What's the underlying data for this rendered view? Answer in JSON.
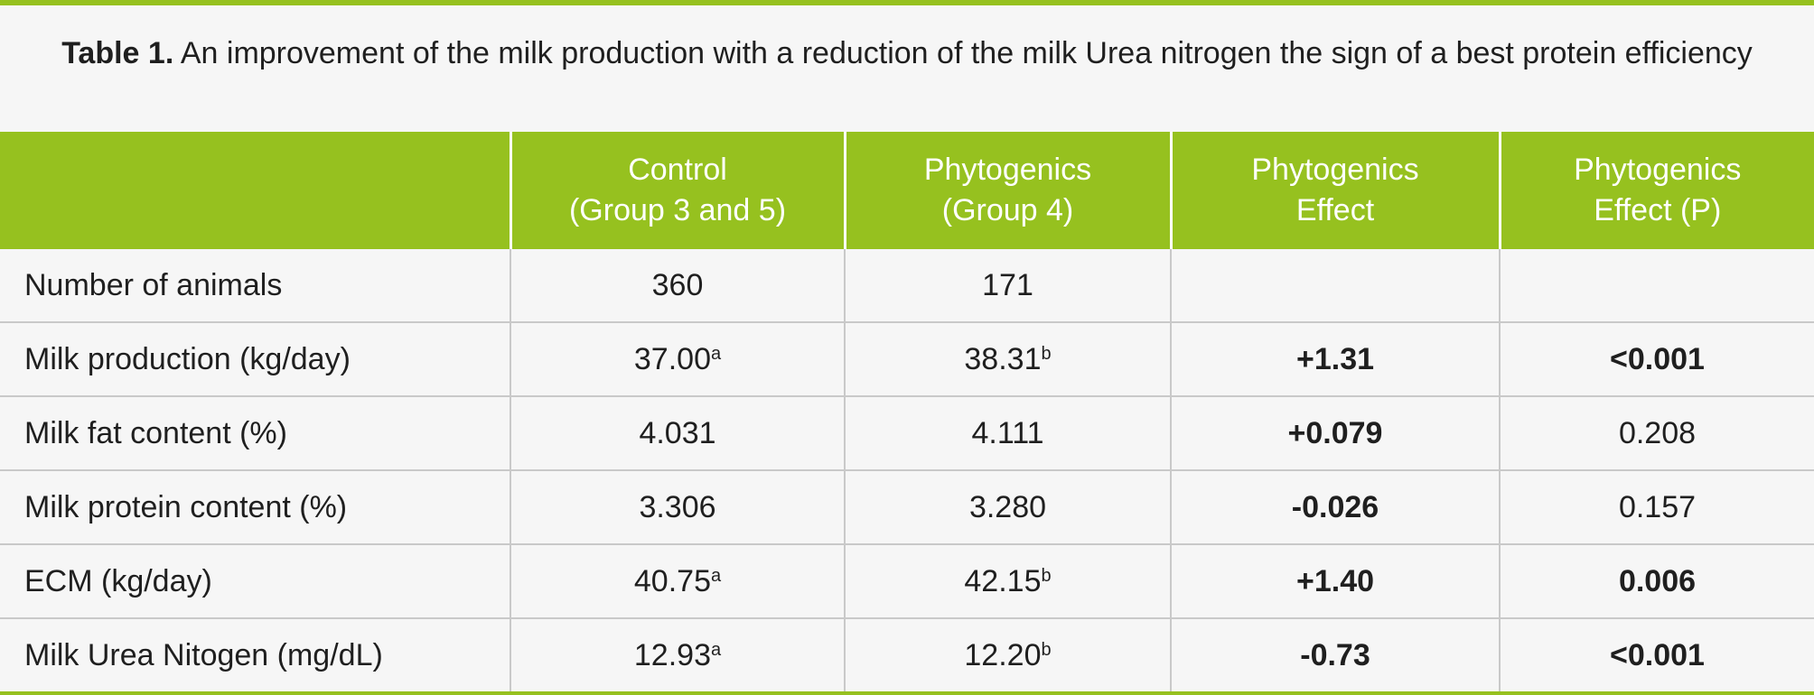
{
  "caption": {
    "label": "Table 1.",
    "text": " An improvement of the milk production with a reduction of the milk Urea nitrogen the sign of a best protein efficiency"
  },
  "headers": [
    {
      "line1": "",
      "line2": ""
    },
    {
      "line1": "Control",
      "line2": "(Group 3 and 5)"
    },
    {
      "line1": "Phytogenics",
      "line2": "(Group 4)"
    },
    {
      "line1": "Phytogenics",
      "line2": "Effect"
    },
    {
      "line1": "Phytogenics",
      "line2": "Effect (P)"
    }
  ],
  "rows": [
    {
      "label": "Number of animals",
      "control": "360",
      "control_sup": "",
      "phyto": "171",
      "phyto_sup": "",
      "effect": "",
      "effect_bold": false,
      "p": "",
      "p_bold": false
    },
    {
      "label": "Milk production (kg/day)",
      "control": "37.00",
      "control_sup": "a",
      "phyto": "38.31",
      "phyto_sup": "b",
      "effect": "+1.31",
      "effect_bold": true,
      "p": "<0.001",
      "p_bold": true
    },
    {
      "label": "Milk fat content (%)",
      "control": "4.031",
      "control_sup": "",
      "phyto": "4.111",
      "phyto_sup": "",
      "effect": "+0.079",
      "effect_bold": true,
      "p": "0.208",
      "p_bold": false
    },
    {
      "label": "Milk protein content (%)",
      "control": "3.306",
      "control_sup": "",
      "phyto": "3.280",
      "phyto_sup": "",
      "effect": "-0.026",
      "effect_bold": true,
      "p": "0.157",
      "p_bold": false
    },
    {
      "label": "ECM (kg/day)",
      "control": "40.75",
      "control_sup": "a",
      "phyto": "42.15",
      "phyto_sup": "b",
      "effect": "+1.40",
      "effect_bold": true,
      "p": "0.006",
      "p_bold": true
    },
    {
      "label": "Milk Urea Nitogen (mg/dL)",
      "control": "12.93",
      "control_sup": "a",
      "phyto": "12.20",
      "phyto_sup": "b",
      "effect": "-0.73",
      "effect_bold": true,
      "p": "<0.001",
      "p_bold": true
    }
  ],
  "colors": {
    "accent_green": "#96c11f",
    "background": "#f6f6f6",
    "grid": "#c9c9c9"
  }
}
